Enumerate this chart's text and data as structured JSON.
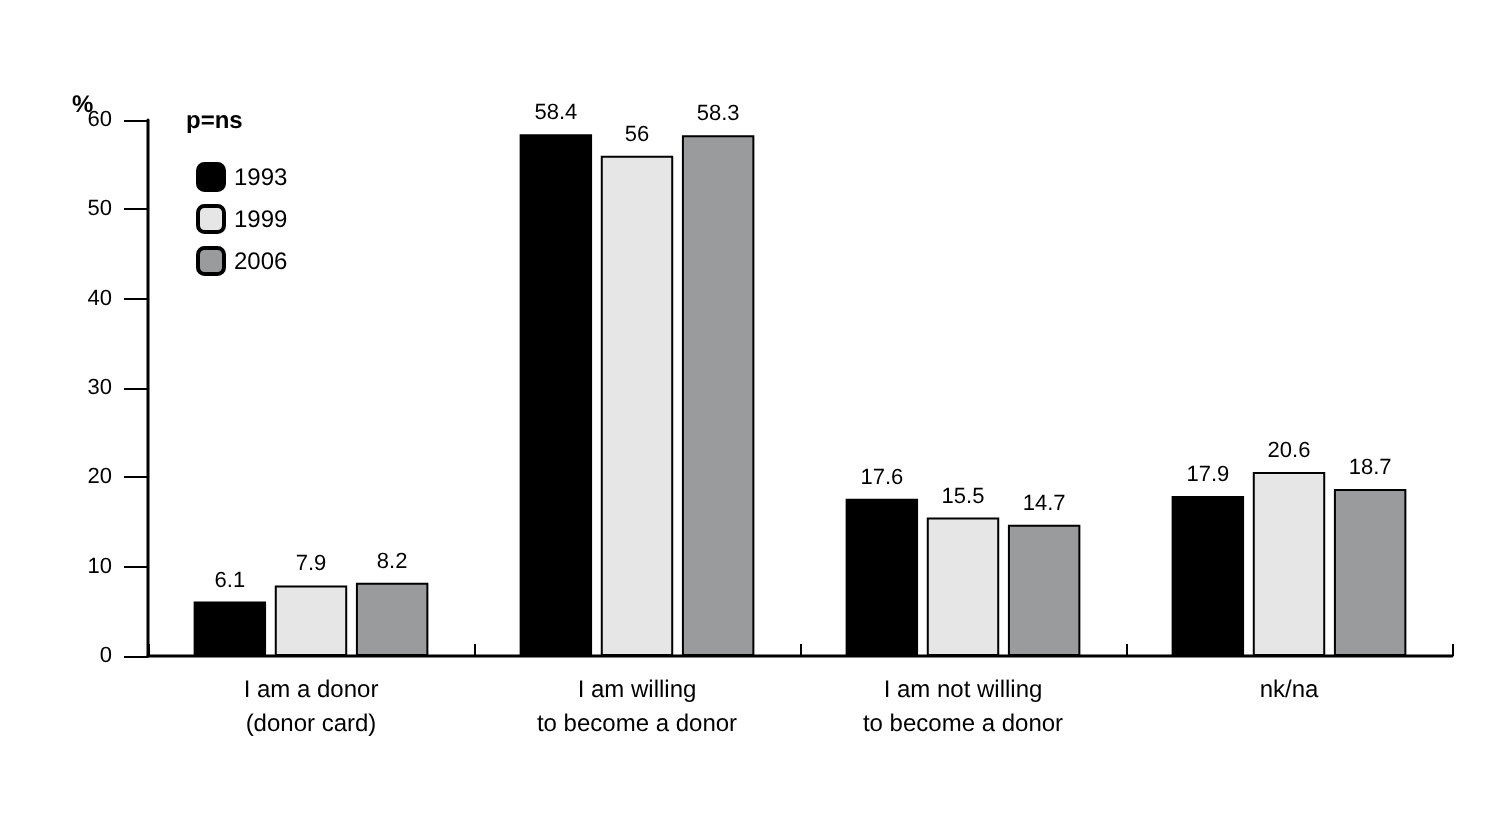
{
  "chart_data": {
    "type": "bar",
    "ylabel": "%",
    "legend_title": "p=ns",
    "categories": [
      "I am a donor\n(donor card)",
      "I am willing\nto become a donor",
      "I am not willing\nto become a donor",
      "nk/na"
    ],
    "series": [
      {
        "name": "1993",
        "color": "#000000",
        "values": [
          6.1,
          58.4,
          17.6,
          17.9
        ]
      },
      {
        "name": "1999",
        "color": "#e6e6e6",
        "values": [
          7.9,
          56,
          15.5,
          20.6
        ]
      },
      {
        "name": "2006",
        "color": "#999b9d",
        "values": [
          8.2,
          58.3,
          14.7,
          18.7
        ]
      }
    ],
    "ylim": [
      0,
      60
    ],
    "yticks": [
      0,
      10,
      20,
      30,
      40,
      50,
      60
    ],
    "grid": false,
    "legend": "top left",
    "data_labels": true
  }
}
